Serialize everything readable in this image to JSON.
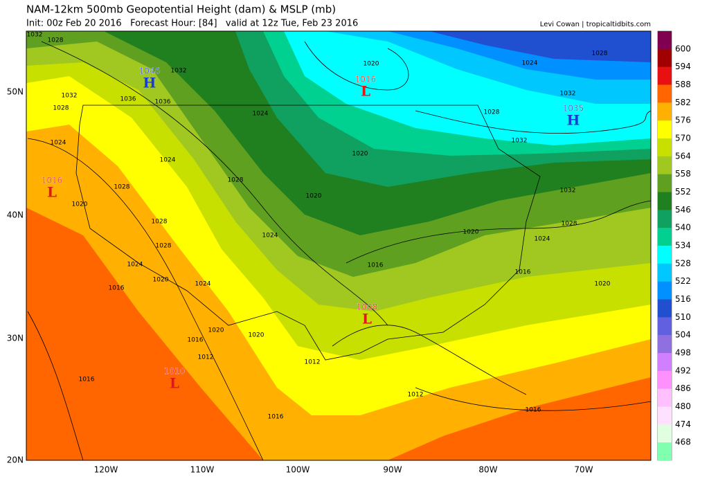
{
  "header": {
    "title": "NAM-12km 500mb Geopotential Height (dam) & MSLP (mb)",
    "subtitle": "Init: 00z Feb 20 2016   Forecast Hour: [84]   valid at 12z Tue, Feb 23 2016",
    "credit": "Levi Cowan | tropicaltidbits.com"
  },
  "map": {
    "pressure_centers": [
      {
        "kind": "H",
        "value": "1046"
      },
      {
        "kind": "L",
        "value": "1016"
      },
      {
        "kind": "H",
        "value": "1035"
      },
      {
        "kind": "L",
        "value": "1016"
      },
      {
        "kind": "L",
        "value": "1008"
      },
      {
        "kind": "L",
        "value": "1010"
      }
    ],
    "isobar_labels": [
      "1032",
      "1028",
      "1032",
      "1032",
      "1028",
      "1036",
      "1036",
      "1024",
      "1024",
      "1020",
      "1020",
      "1028",
      "1024",
      "1032",
      "1028",
      "1032",
      "1032",
      "1028",
      "1024",
      "1016",
      "1020",
      "1020",
      "1020",
      "1028",
      "1028",
      "1020",
      "1028",
      "1024",
      "1028",
      "1024",
      "1016",
      "1020",
      "1024",
      "1020",
      "1020",
      "1016",
      "1012",
      "1012",
      "1016",
      "1012",
      "1016",
      "1016",
      "1016",
      "1024"
    ],
    "lat_labels": [
      "50N",
      "40N",
      "30N",
      "20N"
    ],
    "lon_labels": [
      "120W",
      "110W",
      "100W",
      "90W",
      "80W",
      "70W"
    ]
  },
  "colorbar": {
    "levels": [
      600,
      594,
      588,
      582,
      576,
      570,
      564,
      558,
      552,
      546,
      540,
      534,
      528,
      522,
      516,
      510,
      504,
      498,
      492,
      486,
      480,
      474,
      468
    ],
    "colors": [
      "#800050",
      "#a00000",
      "#e81010",
      "#ff6600",
      "#ffb000",
      "#ffff00",
      "#c8e000",
      "#a0c820",
      "#60a020",
      "#208020",
      "#10a060",
      "#00d090",
      "#00ffff",
      "#00c8ff",
      "#0090ff",
      "#2050d0",
      "#6060e0",
      "#9070e0",
      "#d080ff",
      "#ff90ff",
      "#ffc0ff",
      "#ffe0ff",
      "#e0ffe0",
      "#80ffb0"
    ]
  }
}
